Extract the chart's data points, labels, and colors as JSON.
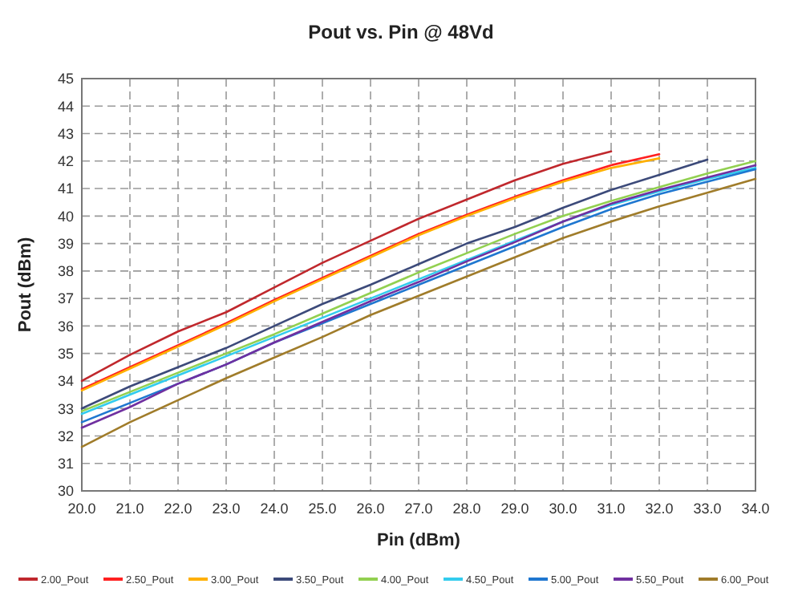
{
  "chart_data": {
    "type": "line",
    "title": "Pout vs. Pin @ 48Vd",
    "xlabel": "Pin (dBm)",
    "ylabel": "Pout (dBm)",
    "x": [
      20,
      21,
      22,
      23,
      24,
      25,
      26,
      27,
      28,
      29,
      30,
      31,
      32,
      33,
      34
    ],
    "xlim": [
      20,
      34
    ],
    "xticks": [
      {
        "value": 20,
        "label": "20.0"
      },
      {
        "value": 21,
        "label": "21.0"
      },
      {
        "value": 22,
        "label": "22.0"
      },
      {
        "value": 23,
        "label": "23.0"
      },
      {
        "value": 24,
        "label": "24.0"
      },
      {
        "value": 25,
        "label": "25.0"
      },
      {
        "value": 26,
        "label": "26.0"
      },
      {
        "value": 27,
        "label": "27.0"
      },
      {
        "value": 28,
        "label": "28.0"
      },
      {
        "value": 29,
        "label": "29.0"
      },
      {
        "value": 30,
        "label": "30.0"
      },
      {
        "value": 31,
        "label": "31.0"
      },
      {
        "value": 32,
        "label": "32.0"
      },
      {
        "value": 33,
        "label": "33.0"
      },
      {
        "value": 34,
        "label": "34.0"
      }
    ],
    "ylim": [
      30,
      45
    ],
    "yticks": [
      30,
      31,
      32,
      33,
      34,
      35,
      36,
      37,
      38,
      39,
      40,
      41,
      42,
      43,
      44,
      45
    ],
    "grid": true,
    "legend": "bottom",
    "marker": "none",
    "line_style": "solid",
    "series": [
      {
        "name": "2.00_Pout",
        "color": "#c0282d",
        "values": [
          34.0,
          34.95,
          35.8,
          36.5,
          37.4,
          38.3,
          39.1,
          39.9,
          40.6,
          41.3,
          41.9,
          42.35,
          null,
          null,
          null
        ]
      },
      {
        "name": "2.50_Pout",
        "color": "#ff2020",
        "values": [
          33.7,
          34.5,
          35.3,
          36.1,
          36.95,
          37.75,
          38.55,
          39.35,
          40.05,
          40.7,
          41.3,
          41.85,
          42.25,
          null,
          null
        ]
      },
      {
        "name": "3.00_Pout",
        "color": "#ffb000",
        "values": [
          33.65,
          34.45,
          35.25,
          36.05,
          36.9,
          37.7,
          38.5,
          39.3,
          40.0,
          40.65,
          41.25,
          41.75,
          42.1,
          null,
          null
        ]
      },
      {
        "name": "3.50_Pout",
        "color": "#3c4a7a",
        "values": [
          33.0,
          33.8,
          34.5,
          35.2,
          36.0,
          36.8,
          37.5,
          38.25,
          39.0,
          39.6,
          40.3,
          40.95,
          41.5,
          42.05,
          null
        ]
      },
      {
        "name": "4.00_Pout",
        "color": "#92d050",
        "values": [
          32.9,
          33.6,
          34.3,
          35.0,
          35.7,
          36.45,
          37.2,
          37.95,
          38.65,
          39.35,
          40.0,
          40.55,
          41.05,
          41.55,
          42.0
        ]
      },
      {
        "name": "4.50_Pout",
        "color": "#33ccee",
        "values": [
          32.8,
          33.5,
          34.2,
          34.9,
          35.6,
          36.3,
          37.0,
          37.7,
          38.4,
          39.1,
          39.8,
          40.4,
          40.9,
          41.35,
          41.75
        ]
      },
      {
        "name": "5.00_Pout",
        "color": "#1f77d0",
        "values": [
          32.5,
          33.2,
          33.9,
          34.6,
          35.4,
          36.1,
          36.8,
          37.5,
          38.2,
          38.9,
          39.6,
          40.25,
          40.8,
          41.25,
          41.7
        ]
      },
      {
        "name": "5.50_Pout",
        "color": "#7030a0",
        "values": [
          32.3,
          33.05,
          33.9,
          34.6,
          35.4,
          36.15,
          36.9,
          37.6,
          38.35,
          39.05,
          39.8,
          40.45,
          40.95,
          41.4,
          41.85
        ]
      },
      {
        "name": "6.00_Pout",
        "color": "#a07c2a",
        "values": [
          31.6,
          32.5,
          33.3,
          34.1,
          34.85,
          35.6,
          36.4,
          37.1,
          37.8,
          38.5,
          39.2,
          39.8,
          40.35,
          40.85,
          41.35
        ]
      }
    ]
  }
}
